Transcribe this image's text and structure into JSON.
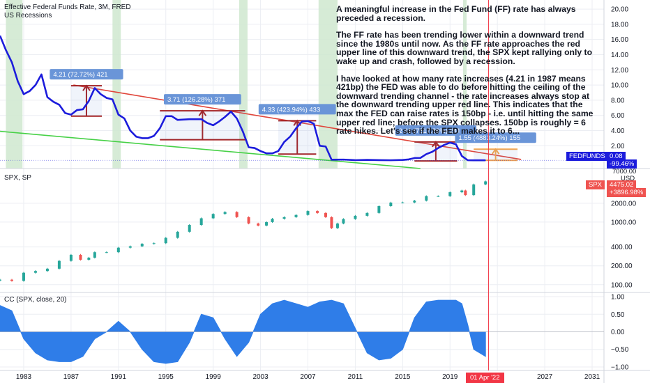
{
  "theme": {
    "line_blue": "#1c1cdc",
    "area_blue": "#2f7de8",
    "recession_green": "#cfe8cf",
    "channel_red": "#e0453a",
    "marker_red": "#a51f1f",
    "support_green": "#47d147",
    "projection_orange": "#f7a54a",
    "label_blue": "#6a95d8",
    "candle_up": "#26a69a",
    "candle_down": "#ef5350",
    "axis_text": "#131722",
    "grid": "#eceef3",
    "date_red": "#f23645"
  },
  "chart_data": [
    {
      "type": "line",
      "pane": "fed-funds",
      "title": "Effective Federal Funds Rate, 3M, FRED",
      "subtitle": "US Recessions",
      "y_ticks": [
        2.0,
        4.0,
        6.0,
        8.0,
        10.0,
        12.0,
        14.0,
        16.0,
        18.0,
        20.0
      ],
      "ylim": [
        -1.0,
        21.2
      ],
      "series": [
        {
          "name": "FEDFUNDS",
          "x": [
            1981.0,
            1981.5,
            1982.0,
            1982.5,
            1983.0,
            1983.5,
            1984.0,
            1984.5,
            1985.0,
            1985.5,
            1986.0,
            1986.5,
            1987.0,
            1987.5,
            1988.0,
            1988.5,
            1989.0,
            1989.5,
            1990.0,
            1990.5,
            1991.0,
            1991.5,
            1992.0,
            1992.5,
            1993.0,
            1993.5,
            1994.0,
            1994.5,
            1995.0,
            1995.5,
            1996.0,
            1997.0,
            1998.0,
            1998.5,
            1999.0,
            1999.5,
            2000.0,
            2000.5,
            2001.0,
            2001.5,
            2002.0,
            2002.5,
            2003.0,
            2003.5,
            2004.0,
            2004.5,
            2005.0,
            2005.5,
            2006.0,
            2006.5,
            2007.0,
            2007.5,
            2008.0,
            2008.5,
            2009.0,
            2010.0,
            2011.0,
            2012.0,
            2013.0,
            2014.0,
            2015.0,
            2015.5,
            2016.0,
            2016.5,
            2017.0,
            2017.5,
            2018.0,
            2018.5,
            2019.0,
            2019.5,
            2020.0,
            2020.5,
            2021.0,
            2022.0
          ],
          "y": [
            16.5,
            14.6,
            13.0,
            10.5,
            8.8,
            9.2,
            10.0,
            11.4,
            8.4,
            7.8,
            7.4,
            6.3,
            6.1,
            6.7,
            6.8,
            7.9,
            9.6,
            8.8,
            8.3,
            8.1,
            6.1,
            5.6,
            4.0,
            3.2,
            3.0,
            3.0,
            3.3,
            4.3,
            5.9,
            5.9,
            5.4,
            5.5,
            5.5,
            5.0,
            4.7,
            5.2,
            5.8,
            6.5,
            5.6,
            3.9,
            1.8,
            1.7,
            1.3,
            1.0,
            1.0,
            1.3,
            2.5,
            3.2,
            4.3,
            5.2,
            5.25,
            4.9,
            2.0,
            1.9,
            0.16,
            0.18,
            0.1,
            0.14,
            0.11,
            0.09,
            0.13,
            0.2,
            0.38,
            0.4,
            0.9,
            1.2,
            1.7,
            2.1,
            2.41,
            2.2,
            0.65,
            0.09,
            0.08,
            0.08
          ]
        }
      ],
      "recessions": [
        [
          1981.5,
          1982.9
        ],
        [
          1990.5,
          1991.2
        ],
        [
          2001.2,
          2001.9
        ],
        [
          2007.9,
          2009.5
        ],
        [
          2020.1,
          2020.4
        ]
      ],
      "trendlines": [
        {
          "name": "downtrend-channel-upper",
          "x": [
            1987.2,
            2025.0
          ],
          "y": [
            10.0,
            0.2
          ]
        },
        {
          "name": "support-line",
          "x": [
            1981.0,
            2016.5
          ],
          "y": [
            3.9,
            -1.0
          ]
        }
      ],
      "hike_markers": [
        {
          "x_start": 1987.0,
          "x_end": 1989.6,
          "y_low": 5.9,
          "y_high": 9.9,
          "label": "4.21 (72.72%) 421"
        },
        {
          "x_start": 1994.5,
          "x_end": 2001.7,
          "y_low": 2.8,
          "y_high": 6.6,
          "label": "3.71 (126.28%) 371"
        },
        {
          "x_start": 2004.5,
          "x_end": 2007.7,
          "y_low": 0.9,
          "y_high": 5.3,
          "label": "4.33 (423.94%) 433"
        },
        {
          "x_start": 2016.0,
          "x_end": 2019.6,
          "y_low": 0.0,
          "y_high": 2.5,
          "label": "2.41 (7617.86%) 241"
        },
        {
          "x_start": 2021.0,
          "x_end": 2024.7,
          "y_low": 0.08,
          "y_high": 1.55,
          "label": "1.55 (4883.24%) 155",
          "projection": true
        }
      ],
      "last_value": {
        "name": "FEDFUNDS",
        "value": "0.08",
        "change": "-99.46%"
      }
    },
    {
      "type": "candlestick",
      "pane": "spx",
      "title": "SPX, SP",
      "y_scale": "log",
      "y_ticks": [
        100.0,
        200.0,
        400.0,
        1000.0,
        2000.0
      ],
      "y_tick_labels": [
        "100.00",
        "200.00",
        "400.00",
        "1000.00",
        "2000.00"
      ],
      "ylim": [
        75,
        7000
      ],
      "top_label": "7000.00",
      "currency": "USD",
      "series": [
        {
          "name": "SPX",
          "x": [
            1981.0,
            1982.0,
            1983.0,
            1984.0,
            1985.0,
            1986.0,
            1987.0,
            1987.8,
            1988.5,
            1989.0,
            1990.0,
            1991.0,
            1992.0,
            1993.0,
            1994.0,
            1995.0,
            1996.0,
            1997.0,
            1998.0,
            1999.0,
            2000.0,
            2001.0,
            2002.0,
            2002.8,
            2003.5,
            2004.0,
            2005.0,
            2006.0,
            2007.0,
            2007.8,
            2008.5,
            2009.0,
            2009.5,
            2010.0,
            2011.0,
            2012.0,
            2013.0,
            2014.0,
            2015.0,
            2016.0,
            2017.0,
            2018.0,
            2019.0,
            2020.0,
            2020.3,
            2021.0,
            2022.0
          ],
          "y": [
            120,
            115,
            155,
            165,
            180,
            240,
            300,
            250,
            270,
            330,
            330,
            390,
            410,
            450,
            460,
            560,
            700,
            900,
            1150,
            1350,
            1450,
            1200,
            950,
            880,
            1000,
            1130,
            1200,
            1300,
            1500,
            1400,
            1200,
            800,
            950,
            1120,
            1260,
            1400,
            1800,
            2050,
            2060,
            2200,
            2600,
            2600,
            3000,
            3200,
            2700,
            4000,
            4475
          ]
        }
      ],
      "last_value": {
        "name": "SPX",
        "value": "4475.02",
        "change": "+3896.98%"
      }
    },
    {
      "type": "area",
      "pane": "correlation",
      "title": "CC (SPX, close, 20)",
      "y_ticks": [
        -1.0,
        -0.5,
        0.0,
        0.5,
        1.0
      ],
      "y_tick_labels": [
        "−1.00",
        "−0.50",
        "0.00",
        "0.50",
        "1.00"
      ],
      "ylim": [
        -1.1,
        1.1
      ],
      "series": [
        {
          "name": "CC",
          "x": [
            1981.0,
            1982.0,
            1983.0,
            1984.0,
            1985.0,
            1986.0,
            1987.0,
            1988.0,
            1989.0,
            1990.0,
            1991.0,
            1992.0,
            1993.0,
            1994.0,
            1995.0,
            1996.0,
            1997.0,
            1998.0,
            1999.0,
            2000.0,
            2001.0,
            2002.0,
            2003.0,
            2004.0,
            2005.0,
            2006.0,
            2007.0,
            2008.0,
            2009.0,
            2010.0,
            2011.0,
            2012.0,
            2013.0,
            2014.0,
            2015.0,
            2016.0,
            2017.0,
            2018.0,
            2019.0,
            2019.5,
            2020.0,
            2020.5,
            2021.0,
            2022.0
          ],
          "y": [
            0.75,
            0.6,
            -0.2,
            -0.6,
            -0.8,
            -0.85,
            -0.85,
            -0.7,
            -0.2,
            0.0,
            0.3,
            0.0,
            -0.5,
            -0.85,
            -0.9,
            -0.85,
            -0.3,
            0.5,
            0.4,
            -0.2,
            -0.7,
            -0.3,
            0.5,
            0.8,
            0.9,
            0.8,
            0.7,
            0.85,
            0.9,
            0.8,
            0.1,
            -0.6,
            -0.8,
            -0.75,
            -0.5,
            0.4,
            0.85,
            0.9,
            0.9,
            0.9,
            0.8,
            0.2,
            -0.5,
            -0.7
          ]
        }
      ]
    }
  ],
  "x_axis": {
    "ticks": [
      1983,
      1987,
      1991,
      1995,
      1999,
      2003,
      2007,
      2011,
      2015,
      2019,
      2023,
      2027,
      2031
    ],
    "labels": [
      "1983",
      "1987",
      "1991",
      "1995",
      "1999",
      "2003",
      "2007",
      "2011",
      "2015",
      "2019",
      "",
      "2027",
      "2031"
    ],
    "range": [
      1981.0,
      2032.0
    ],
    "current_date": {
      "x": 2022.25,
      "label": "01 Apr '22"
    }
  },
  "annotation": {
    "paragraphs": [
      "A meaningful increase in the Fed Fund (FF) rate has always preceded a recession.",
      "The FF rate has been trending lower within a downward trend since the 1980s until now. As the FF rate approaches the red upper line of this downward trend, the SPX kept rallying only to wake up and crash, followed by a recession.",
      "I have looked at how many rate increases (4.21 in 1987 means 421bp) the FED was able to do before hitting the ceiling of the downward trending channel - the rate increases always stop at the downward trending upper red line. This indicates that the max the FED can raise rates is 150bp - i.e. until hitting the same upper red line; before the SPX collapses. 150bp is roughly = 6 rate hikes. Let's see if the FED makes it to 6..."
    ]
  }
}
